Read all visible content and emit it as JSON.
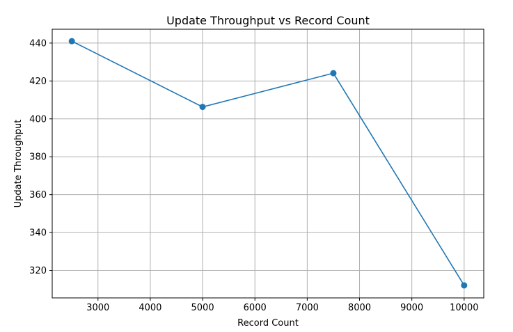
{
  "chart_data": {
    "type": "line",
    "title": "Update Throughput vs Record Count",
    "xlabel": "Record Count",
    "ylabel": "Update Throughput",
    "x": [
      2500,
      5000,
      7500,
      10000
    ],
    "series": [
      {
        "values": [
          441,
          406.3,
          424.1,
          312.1
        ]
      }
    ],
    "xlim": [
      2125,
      10375
    ],
    "ylim": [
      305.5,
      447.3
    ],
    "xticks": [
      3000,
      4000,
      5000,
      6000,
      7000,
      8000,
      9000,
      10000
    ],
    "yticks": [
      320,
      340,
      360,
      380,
      400,
      420,
      440
    ],
    "xtick_labels": [
      "3000",
      "4000",
      "5000",
      "6000",
      "7000",
      "8000",
      "9000",
      "10000"
    ],
    "ytick_labels": [
      "320",
      "340",
      "360",
      "380",
      "400",
      "420",
      "440"
    ],
    "grid": true,
    "marker": "circle",
    "colors": {
      "line": "#1f77b4",
      "grid": "#b0b0b0",
      "axes": "#000000"
    }
  }
}
